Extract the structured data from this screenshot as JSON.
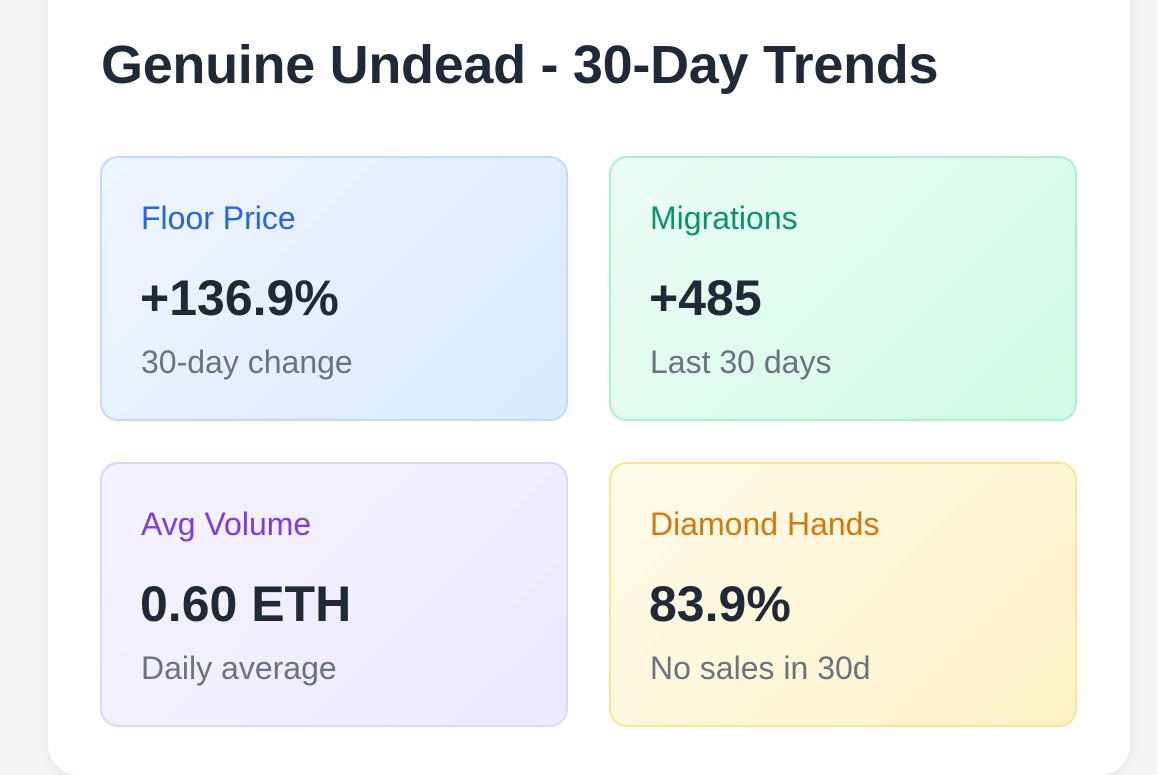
{
  "header": {
    "title": "Genuine Undead - 30-Day Trends"
  },
  "stats": [
    {
      "label": "Floor Price",
      "value": "+136.9%",
      "subtext": "30-day change",
      "accent_color": "#2563eb"
    },
    {
      "label": "Migrations",
      "value": "+485",
      "subtext": "Last 30 days",
      "accent_color": "#059669"
    },
    {
      "label": "Avg Volume",
      "value": "0.60 ETH",
      "subtext": "Daily average",
      "accent_color": "#7c3aed"
    },
    {
      "label": "Diamond Hands",
      "value": "83.9%",
      "subtext": "No sales in 30d",
      "accent_color": "#d97706"
    }
  ]
}
